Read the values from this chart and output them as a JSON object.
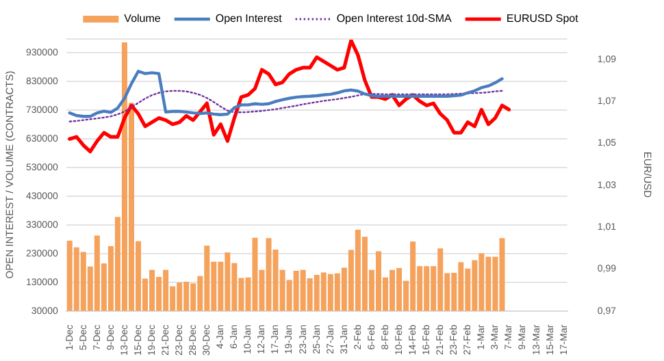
{
  "chart_data": {
    "type": "bar",
    "categories": [
      "1-Dec",
      null,
      "5-Dec",
      null,
      "7-Dec",
      null,
      "9-Dec",
      null,
      "13-Dec",
      null,
      "15-Dec",
      null,
      "19-Dec",
      null,
      "21-Dec",
      null,
      "23-Dec",
      null,
      "28-Dec",
      null,
      "30-Dec",
      null,
      "4-Jan",
      null,
      "6-Jan",
      null,
      "10-Jan",
      null,
      "12-Jan",
      null,
      "17-Jan",
      null,
      "19-Jan",
      null,
      "23-Jan",
      null,
      "25-Jan",
      null,
      "27-Jan",
      null,
      "31-Jan",
      null,
      "2-Feb",
      null,
      "6-Feb",
      null,
      "8-Feb",
      null,
      "10-Feb",
      null,
      "14-Feb",
      null,
      "16-Feb",
      null,
      "21-Feb",
      null,
      "23-Feb",
      null,
      "27-Feb",
      null,
      "1-Mar",
      null,
      "3-Mar",
      null,
      "7-Mar",
      null,
      "9-Mar",
      null,
      "13-Mar",
      null,
      "15-Mar",
      null,
      "17-Mar"
    ],
    "series": [
      {
        "name": "Volume",
        "color": "#f5a25d",
        "values": [
          275000,
          252000,
          236000,
          185000,
          293000,
          196000,
          256000,
          358000,
          966000,
          755000,
          273000,
          143000,
          173000,
          149000,
          173000,
          116000,
          129000,
          132000,
          126000,
          152000,
          258000,
          202000,
          202000,
          234000,
          197000,
          145000,
          147000,
          285000,
          173000,
          284000,
          244000,
          173000,
          138000,
          170000,
          173000,
          144000,
          156000,
          164000,
          159000,
          161000,
          181000,
          243000,
          313000,
          289000,
          173000,
          238000,
          147000,
          173000,
          180000,
          135000,
          272000,
          186000,
          186000,
          186000,
          248000,
          162000,
          163000,
          200000,
          178000,
          207000,
          231000,
          219000,
          219000,
          284000,
          null,
          null,
          null,
          null,
          null,
          null,
          null,
          null,
          null
        ]
      },
      {
        "name": "Open Interest",
        "type": "line",
        "color": "#4a7dbf",
        "values": [
          720000,
          711000,
          708000,
          708000,
          720000,
          726000,
          722000,
          737000,
          771000,
          822000,
          865000,
          857000,
          860000,
          857000,
          723000,
          725000,
          725000,
          723000,
          720000,
          718000,
          720000,
          716000,
          714000,
          716000,
          738000,
          748000,
          748000,
          752000,
          750000,
          752000,
          760000,
          766000,
          771000,
          775000,
          777000,
          778000,
          780000,
          783000,
          785000,
          790000,
          797000,
          800000,
          796000,
          786000,
          780000,
          778000,
          778000,
          778000,
          778000,
          778000,
          778000,
          778000,
          778000,
          778000,
          778000,
          778000,
          780000,
          782000,
          790000,
          797000,
          808000,
          814000,
          825000,
          839000,
          null,
          null,
          null,
          null,
          null,
          null,
          null,
          null,
          null
        ]
      },
      {
        "name": "Open Interest 10d-SMA",
        "type": "line",
        "line_style": "dotted",
        "color": "#7030a0",
        "values": [
          690000,
          692000,
          695000,
          698000,
          701000,
          704000,
          708000,
          715000,
          725000,
          740000,
          755000,
          770000,
          782000,
          790000,
          795000,
          797000,
          797000,
          795000,
          790000,
          783000,
          772000,
          758000,
          742000,
          728000,
          722000,
          722000,
          723000,
          725000,
          727000,
          730000,
          733000,
          737000,
          741000,
          745000,
          750000,
          754000,
          758000,
          762000,
          765000,
          768000,
          772000,
          776000,
          781000,
          786000,
          786000,
          786000,
          785000,
          785000,
          785000,
          785000,
          785000,
          785000,
          785000,
          785000,
          785000,
          785000,
          786000,
          787000,
          788000,
          789000,
          790000,
          792000,
          795000,
          797000,
          null,
          null,
          null,
          null,
          null,
          null,
          null,
          null,
          null
        ]
      },
      {
        "name": "EURUSD Spot",
        "type": "line",
        "axis": "y2",
        "color": "#ff0000",
        "values": [
          1.052,
          1.053,
          1.049,
          1.046,
          1.051,
          1.055,
          1.053,
          1.053,
          1.062,
          1.068,
          1.064,
          1.058,
          1.06,
          1.062,
          1.061,
          1.059,
          1.06,
          1.063,
          1.061,
          1.065,
          1.069,
          1.054,
          1.059,
          1.051,
          1.062,
          1.072,
          1.073,
          1.076,
          1.085,
          1.083,
          1.078,
          1.079,
          1.083,
          1.085,
          1.086,
          1.086,
          1.091,
          1.089,
          1.087,
          1.085,
          1.086,
          1.099,
          1.092,
          1.08,
          1.072,
          1.072,
          1.071,
          1.073,
          1.068,
          1.071,
          1.073,
          1.07,
          1.068,
          1.069,
          1.064,
          1.061,
          1.055,
          1.055,
          1.06,
          1.058,
          1.066,
          1.059,
          1.062,
          1.068,
          1.066,
          null,
          null,
          null,
          null,
          null,
          null,
          null,
          null
        ]
      }
    ],
    "ylabel": "OPEN INTEREST / VOLUME (CONTRACTS)",
    "y2label": "EUR/USD",
    "ylim": [
      30000,
      980000
    ],
    "yticks": [
      30000,
      130000,
      230000,
      330000,
      430000,
      530000,
      630000,
      730000,
      830000,
      930000
    ],
    "y2lim": [
      0.97,
      1.1
    ],
    "y2ticks": [
      {
        "value": 0.97,
        "label": "0,97"
      },
      {
        "value": 0.99,
        "label": "0,99"
      },
      {
        "value": 1.01,
        "label": "1,01"
      },
      {
        "value": 1.03,
        "label": "1,03"
      },
      {
        "value": 1.05,
        "label": "1,05"
      },
      {
        "value": 1.07,
        "label": "1,07"
      },
      {
        "value": 1.09,
        "label": "1,09"
      }
    ],
    "grid": "y",
    "legend": "top",
    "marker": "none"
  }
}
